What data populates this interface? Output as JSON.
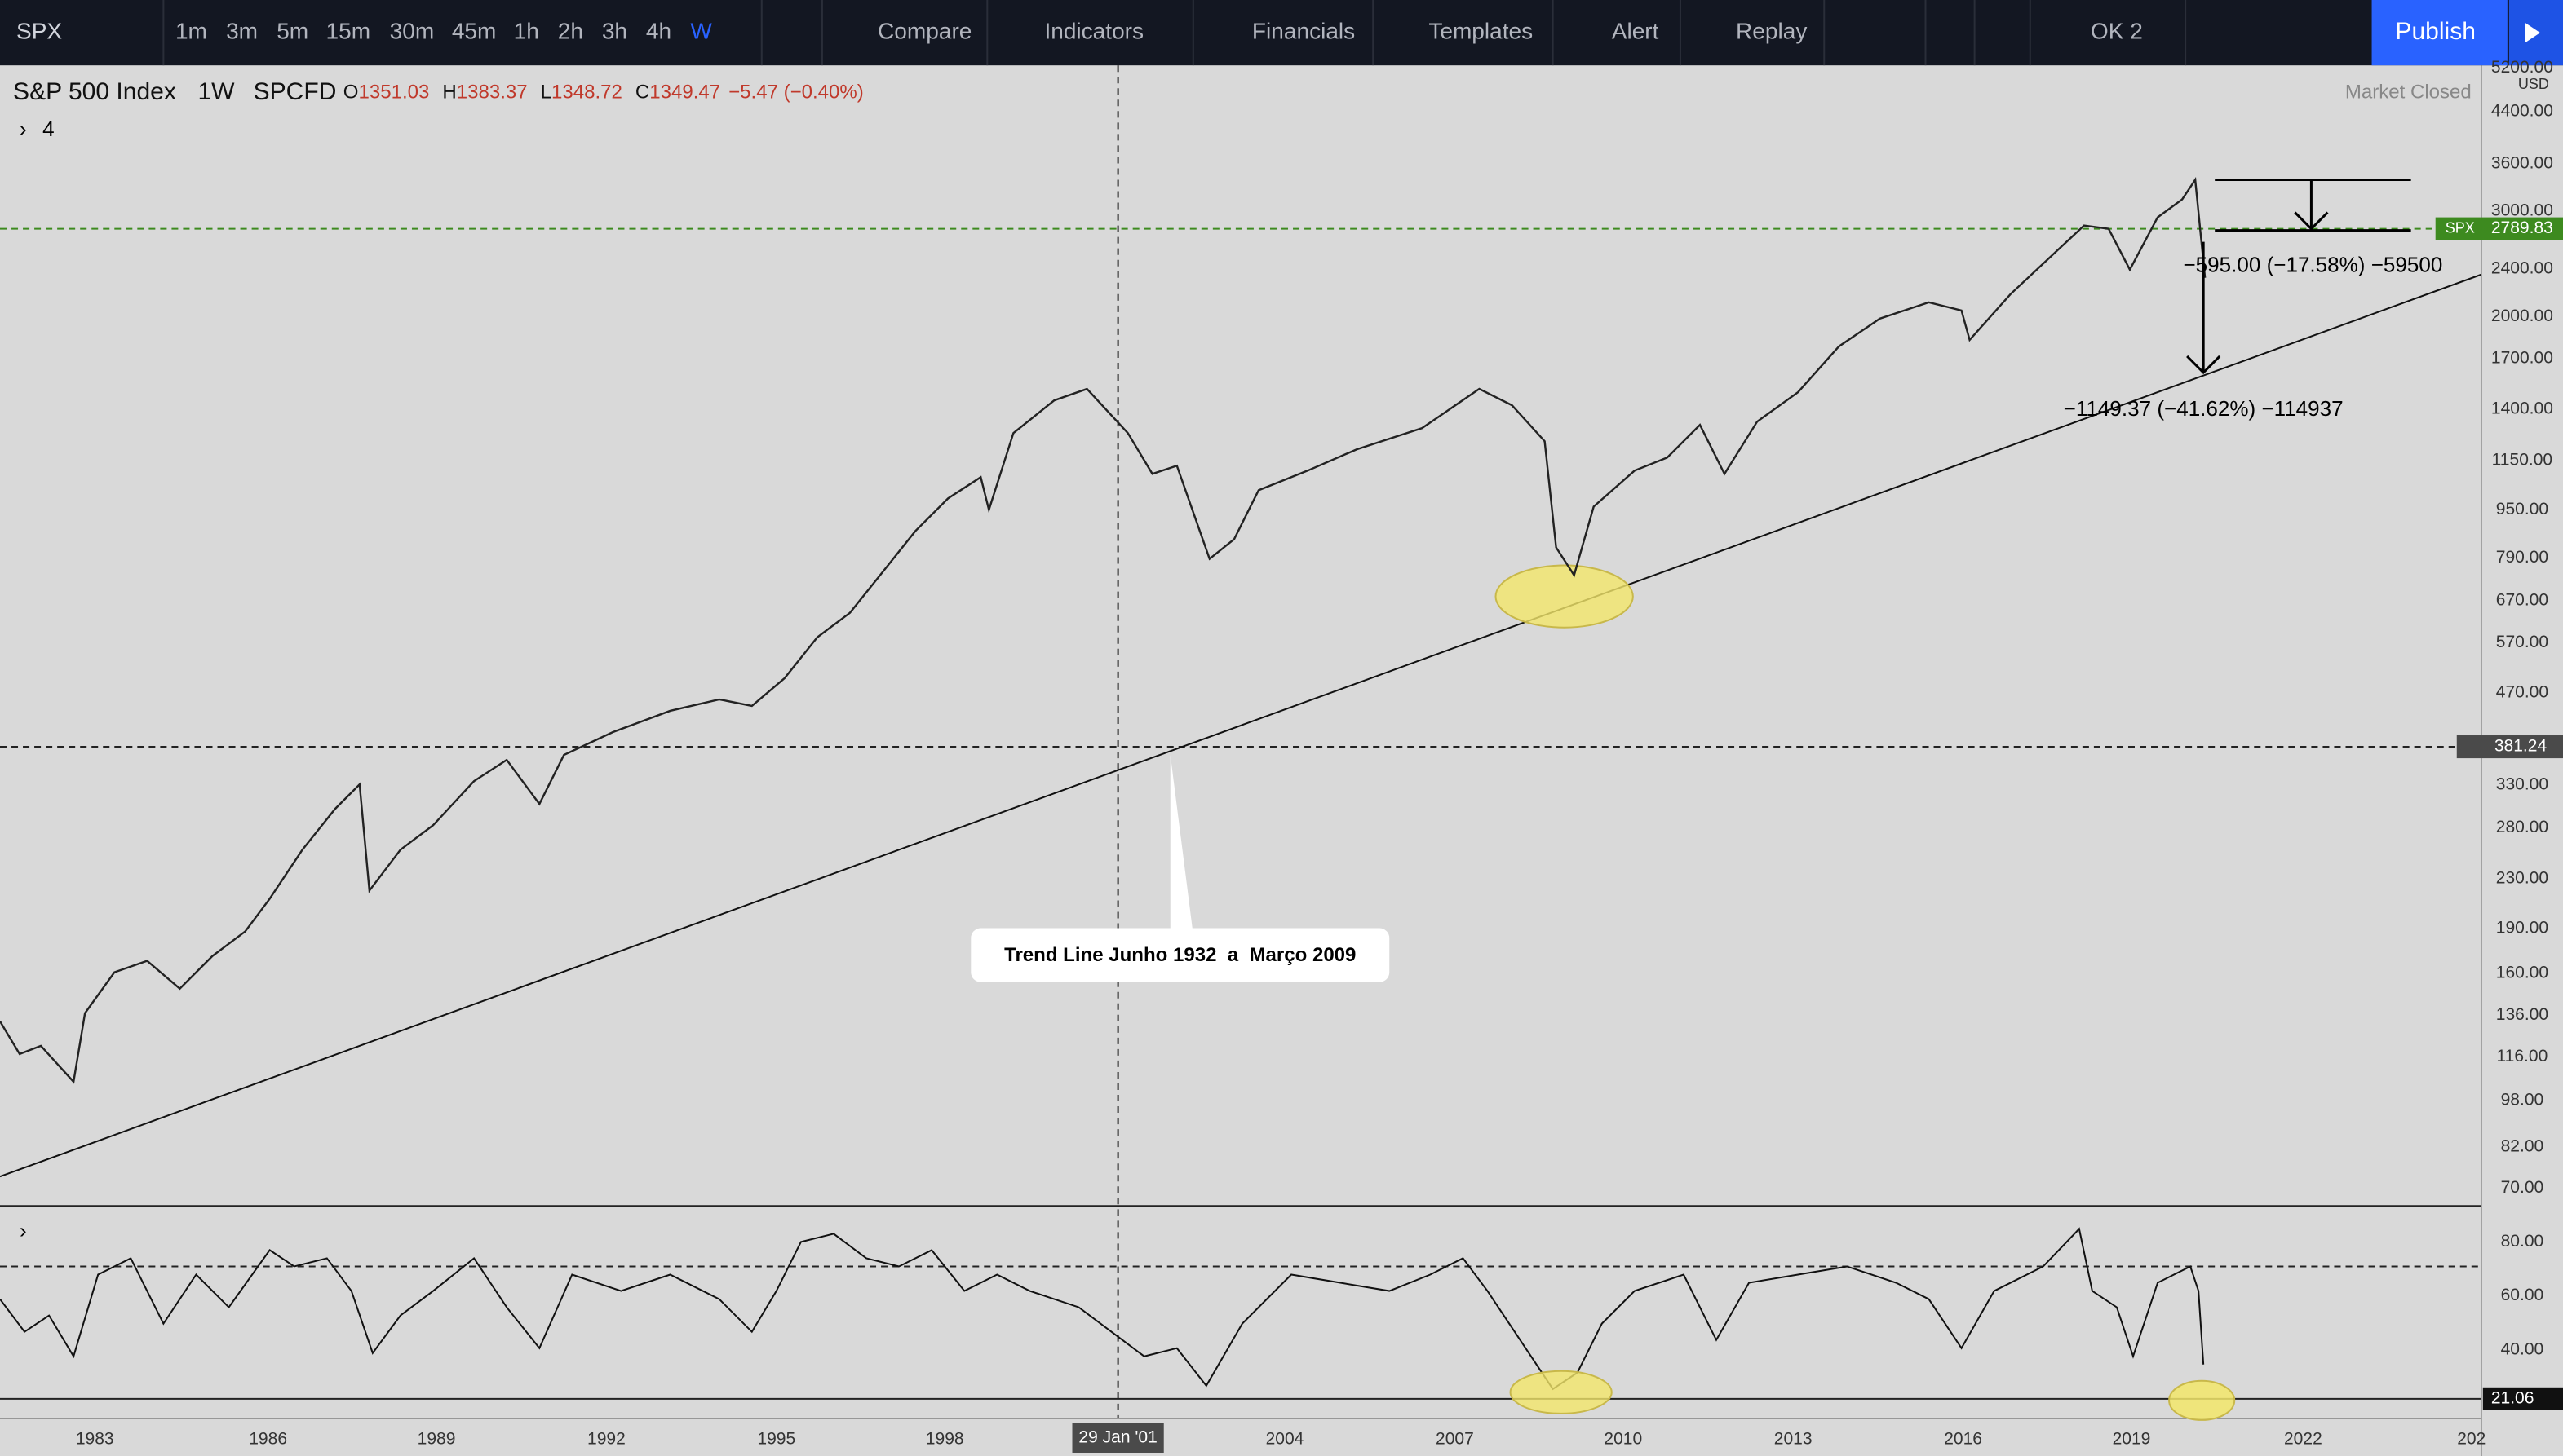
{
  "toolbar": {
    "symbol": "SPX",
    "intervals": [
      "1m",
      "3m",
      "5m",
      "15m",
      "30m",
      "45m",
      "1h",
      "2h",
      "3h",
      "4h",
      "W"
    ],
    "buttons": [
      "Compare",
      "Indicators",
      "Financials",
      "Templates",
      "Alert",
      "Replay"
    ],
    "layout": "OK 2",
    "publish": "Publish"
  },
  "legend": {
    "name": "S&P 500 Index",
    "interval": "1W",
    "exchange": "SPCFD",
    "open_label": "O",
    "open": "1351.03",
    "high_label": "H",
    "high": "1383.37",
    "low_label": "L",
    "low": "1348.72",
    "close_label": "C",
    "close": "1349.47",
    "change": "−5.47 (−0.40%)",
    "indicators_count": "4",
    "status": "Market Closed"
  },
  "price_axis": {
    "labels": [
      "5200.00",
      "4400.00",
      "3600.00",
      "3000.00",
      "2400.00",
      "2000.00",
      "1700.00",
      "1400.00",
      "1150.00",
      "950.00",
      "790.00",
      "670.00",
      "570.00",
      "470.00",
      "330.00",
      "280.00",
      "230.00",
      "190.00",
      "160.00",
      "136.00",
      "116.00",
      "98.00",
      "82.00",
      "70.00"
    ],
    "currency": "USD",
    "symbol_tag": "SPX",
    "last_price": "2789.83",
    "crosshair_price": "381.24"
  },
  "time_axis": {
    "labels": [
      "1983",
      "1986",
      "1989",
      "1992",
      "1995",
      "1998",
      "2004",
      "2007",
      "2010",
      "2013",
      "2016",
      "2019",
      "2022",
      "202"
    ],
    "crosshair_date": "29 Jan '01"
  },
  "annotations": {
    "trend_note": "Trend Line Junho 1932  a  Março 2009",
    "measure_1": "−595.00 (−17.58%) −59500",
    "measure_2": "−1149.37 (−41.62%) −114937"
  },
  "rsi_axis": {
    "labels": [
      "80.00",
      "60.00",
      "40.00"
    ],
    "last_value": "21.06"
  }
}
